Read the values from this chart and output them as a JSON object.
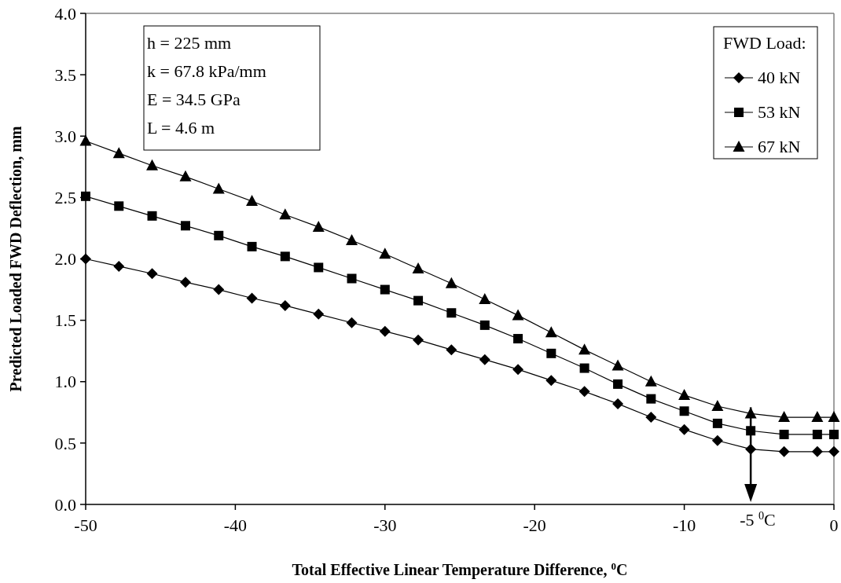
{
  "chart_data": {
    "type": "line",
    "xlabel": "Total Effective Linear Temperature Difference, $^{0}$C",
    "ylabel": "Predicted Loaded FWD Deflection, mm",
    "legend_title": "FWD Load:",
    "legend": "top right",
    "grid": false,
    "x": [
      -50,
      -47.78,
      -45.56,
      -43.33,
      -41.11,
      -38.89,
      -36.67,
      -34.44,
      -32.22,
      -30,
      -27.78,
      -25.56,
      -23.33,
      -21.11,
      -18.89,
      -16.67,
      -14.44,
      -12.22,
      -10,
      -7.78,
      -5.56,
      -3.33,
      -1.11,
      0
    ],
    "xlim": [
      -50,
      0
    ],
    "xticks": [
      -50,
      -40,
      -30,
      -20,
      -10,
      0
    ],
    "ylim": [
      0,
      4
    ],
    "yticks": [
      {
        "value": 0,
        "label": "0.0"
      },
      {
        "value": 0.5,
        "label": "0.5"
      },
      {
        "value": 1,
        "label": "1.0"
      },
      {
        "value": 1.5,
        "label": "1.5"
      },
      {
        "value": 2,
        "label": "2.0"
      },
      {
        "value": 2.5,
        "label": "2.5"
      },
      {
        "value": 3,
        "label": "3.0"
      },
      {
        "value": 3.5,
        "label": "3.5"
      },
      {
        "value": 4,
        "label": "4.0"
      }
    ],
    "series": [
      {
        "name": "40 kN",
        "color": "#000000",
        "marker": "diamond",
        "values": [
          2.0,
          1.94,
          1.88,
          1.81,
          1.75,
          1.68,
          1.62,
          1.55,
          1.48,
          1.41,
          1.34,
          1.26,
          1.18,
          1.1,
          1.01,
          0.92,
          0.82,
          0.71,
          0.61,
          0.52,
          0.45,
          0.43,
          0.43,
          0.43
        ]
      },
      {
        "name": "53 kN",
        "color": "#000000",
        "marker": "square",
        "values": [
          2.51,
          2.43,
          2.35,
          2.27,
          2.19,
          2.1,
          2.02,
          1.93,
          1.84,
          1.75,
          1.66,
          1.56,
          1.46,
          1.35,
          1.23,
          1.11,
          0.98,
          0.86,
          0.76,
          0.66,
          0.6,
          0.57,
          0.57,
          0.57
        ]
      },
      {
        "name": "67 kN",
        "color": "#000000",
        "marker": "triangle",
        "values": [
          2.96,
          2.86,
          2.76,
          2.67,
          2.57,
          2.47,
          2.36,
          2.26,
          2.15,
          2.04,
          1.92,
          1.8,
          1.67,
          1.54,
          1.4,
          1.26,
          1.13,
          1.0,
          0.89,
          0.8,
          0.74,
          0.71,
          0.71,
          0.71
        ]
      }
    ],
    "ref_lines": [
      {
        "axis": "x",
        "value": -5.56,
        "label": "-5 $^{0}$C"
      }
    ],
    "annotations": [
      "h = 225 mm",
      "k = 67.8 kPa/mm",
      "E = 34.5 GPa",
      "L = 4.6 m"
    ]
  }
}
